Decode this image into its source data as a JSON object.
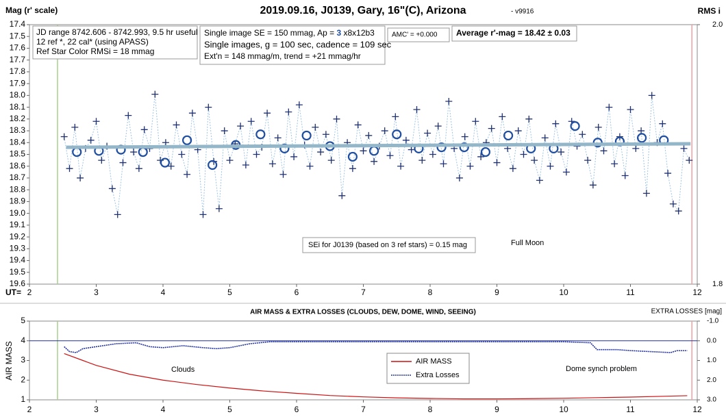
{
  "chart_data": [
    {
      "type": "scatter",
      "title": "2019.09.16, J0139, Gary, 16\"(C), Arizona",
      "version": "- v9916",
      "y_label": "Mag (r' scale)",
      "y2_label": "RMS i",
      "x_prefix": "UT=",
      "xlim": [
        2,
        12
      ],
      "xticks": [
        2,
        3,
        4,
        5,
        6,
        7,
        8,
        9,
        10,
        11,
        12
      ],
      "ylim": [
        19.6,
        17.4
      ],
      "yticks": [
        17.4,
        17.5,
        17.6,
        17.7,
        17.8,
        17.9,
        {
          "value": 18,
          "label": "18.0"
        },
        18.1,
        18.2,
        18.3,
        18.4,
        18.5,
        18.6,
        18.7,
        18.8,
        18.9,
        {
          "value": 19,
          "label": "19.0"
        },
        19.1,
        19.2,
        19.3,
        19.4,
        19.5,
        19.6
      ],
      "y2lim": [
        1.8,
        2.0
      ],
      "y2ticks": [
        {
          "value": 2,
          "label": "2.0"
        },
        {
          "value": 1.8,
          "label": "1.8"
        }
      ],
      "markers": [
        {
          "x": 2.42,
          "color": "#a8d08d"
        },
        {
          "x": 11.92,
          "color": "#f2a0a0"
        }
      ],
      "info": {
        "box1": [
          "JD range 8742.606 - 8742.993, 9.5 hr useful",
          "12 ref *, 22 cal* (using APASS)",
          "Ref Star Color RMSi = 18 mmag"
        ],
        "box2_line1": [
          "Single image SE = 150 mmag, Ap = ",
          "3",
          " x8x12b3"
        ],
        "box2": [
          "Single images, g = 100 sec, cadence = 109 sec",
          "Ext'n = 148 mmag/m, trend = +21 mmag/hr"
        ],
        "amc": "AMC' = +0.000",
        "average": "Average r'-mag =  18.42 ± 0.03",
        "sei": "SEi for J0139 (based on 3 ref stars) = 0.15 mag",
        "moon": "Full Moon"
      },
      "series": [
        {
          "marker": "plus",
          "color": "#1f3070",
          "line_color": "#9cc3e6",
          "x": [
            2.52,
            2.6,
            2.68,
            2.76,
            2.84,
            2.92,
            3,
            3.08,
            3.16,
            3.24,
            3.32,
            3.4,
            3.48,
            3.56,
            3.64,
            3.72,
            3.8,
            3.88,
            3.96,
            4.04,
            4.12,
            4.2,
            4.28,
            4.36,
            4.44,
            4.52,
            4.6,
            4.68,
            4.76,
            4.84,
            4.92,
            5,
            5.08,
            5.16,
            5.24,
            5.32,
            5.4,
            5.48,
            5.56,
            5.64,
            5.72,
            5.8,
            5.88,
            5.96,
            6.04,
            6.12,
            6.2,
            6.28,
            6.36,
            6.44,
            6.52,
            6.6,
            6.68,
            6.76,
            6.84,
            6.92,
            7,
            7.08,
            7.16,
            7.24,
            7.32,
            7.4,
            7.48,
            7.56,
            7.64,
            7.72,
            7.8,
            7.88,
            7.96,
            8.04,
            8.12,
            8.2,
            8.28,
            8.36,
            8.44,
            8.52,
            8.6,
            8.68,
            8.76,
            8.84,
            8.92,
            9,
            9.08,
            9.16,
            9.24,
            9.32,
            9.4,
            9.48,
            9.56,
            9.64,
            9.72,
            9.8,
            9.88,
            9.96,
            10.04,
            10.12,
            10.2,
            10.28,
            10.36,
            10.44,
            10.52,
            10.6,
            10.68,
            10.76,
            10.84,
            10.92,
            11,
            11.08,
            11.16,
            11.24,
            11.32,
            11.4,
            11.48,
            11.56,
            11.64,
            11.72,
            11.8,
            11.88
          ],
          "values": [
            18.35,
            18.62,
            18.27,
            18.7,
            18.45,
            18.38,
            18.22,
            18.55,
            18.43,
            18.79,
            19.01,
            18.57,
            18.17,
            18.48,
            18.62,
            18.29,
            18.45,
            17.99,
            18.55,
            18.4,
            18.6,
            18.25,
            18.5,
            18.67,
            18.15,
            18.46,
            19.01,
            18.1,
            18.56,
            18.96,
            18.3,
            18.55,
            18.41,
            18.26,
            18.59,
            18.22,
            18.5,
            18.44,
            18.15,
            18.58,
            18.36,
            18.67,
            18.14,
            18.52,
            18.08,
            18.42,
            18.6,
            18.27,
            18.48,
            18.33,
            18.55,
            18.2,
            18.85,
            18.4,
            18.62,
            18.25,
            18.47,
            18.34,
            18.56,
            18.43,
            18.3,
            18.51,
            18.18,
            18.6,
            18.38,
            18.46,
            18.12,
            18.55,
            18.32,
            18.5,
            18.26,
            18.58,
            18.05,
            18.45,
            18.7,
            18.35,
            18.6,
            18.22,
            18.52,
            18.4,
            18.28,
            18.57,
            18.18,
            18.45,
            18.62,
            18.3,
            18.5,
            18.2,
            18.55,
            18.72,
            18.36,
            18.6,
            18.24,
            18.48,
            18.65,
            18.22,
            18.43,
            18.33,
            18.55,
            18.76,
            18.27,
            18.47,
            18.1,
            18.58,
            18.35,
            18.68,
            18.12,
            18.45,
            18.3,
            18.83,
            18.0,
            18.4,
            18.24,
            18.66,
            18.92,
            18.98,
            18.45,
            18.55
          ]
        },
        {
          "marker": "circle",
          "color": "#1f4ea0",
          "x": [
            2.71,
            3.04,
            3.37,
            3.7,
            4.03,
            4.36,
            4.74,
            5.09,
            5.46,
            5.82,
            6.15,
            6.5,
            6.84,
            7.16,
            7.5,
            7.83,
            8.17,
            8.51,
            8.83,
            9.17,
            9.51,
            9.85,
            10.17,
            10.51,
            10.84,
            11.17,
            11.5
          ],
          "values": [
            18.48,
            18.47,
            18.46,
            18.48,
            18.57,
            18.38,
            18.59,
            18.42,
            18.33,
            18.45,
            18.34,
            18.43,
            18.52,
            18.47,
            18.33,
            18.45,
            18.44,
            18.44,
            18.48,
            18.34,
            18.45,
            18.45,
            18.26,
            18.4,
            18.39,
            18.36,
            18.38
          ]
        },
        {
          "marker": "line",
          "color": "#93b6c9",
          "x": [
            2.55,
            11.9
          ],
          "values": [
            18.44,
            18.41
          ]
        }
      ]
    },
    {
      "type": "line",
      "title": "AIR MASS & EXTRA LOSSES (CLOUDS, DEW, DOME, WIND, SEEING)",
      "y_label": "AIR MASS",
      "y2_label": "EXTRA LOSSES [mag]",
      "xlim": [
        2,
        12
      ],
      "xticks": [
        2,
        3,
        4,
        5,
        6,
        7,
        8,
        9,
        10,
        11,
        12
      ],
      "ylim": [
        1,
        5
      ],
      "yticks": [
        1,
        2,
        3,
        4,
        5
      ],
      "y2lim": [
        3,
        -1
      ],
      "y2ticks": [
        {
          "value": -1,
          "label": "-1.0"
        },
        {
          "value": 0,
          "label": "0.0"
        },
        {
          "value": 1,
          "label": "1.0"
        },
        {
          "value": 2,
          "label": "2.0"
        },
        {
          "value": 3,
          "label": "3.0"
        }
      ],
      "y2_zero_line": true,
      "markers": [
        {
          "x": 2.42,
          "color": "#a8d08d"
        },
        {
          "x": 11.92,
          "color": "#f2a0a0"
        }
      ],
      "annotations": [
        "Clouds",
        "Dome synch problem"
      ],
      "legend": "center",
      "series": [
        {
          "name": "AIR MASS",
          "color": "#cc1111",
          "style": "solid",
          "x": [
            2.52,
            2.8,
            3,
            3.5,
            4,
            4.5,
            5,
            5.5,
            6,
            6.5,
            7,
            7.5,
            8,
            8.5,
            9,
            9.5,
            10,
            10.5,
            11,
            11.5,
            11.85
          ],
          "values": [
            3.35,
            3,
            2.75,
            2.3,
            2,
            1.78,
            1.6,
            1.45,
            1.33,
            1.22,
            1.15,
            1.1,
            1.07,
            1.05,
            1.05,
            1.06,
            1.08,
            1.11,
            1.14,
            1.18,
            1.21
          ]
        },
        {
          "name": "Extra Losses",
          "color": "#1f2f9c",
          "style": "dotted",
          "axis": "y2",
          "x": [
            2.52,
            2.6,
            2.7,
            2.8,
            3,
            3.3,
            3.6,
            3.8,
            4,
            4.3,
            4.6,
            4.8,
            5,
            5.3,
            5.6,
            6,
            6.5,
            7,
            7.5,
            8,
            8.5,
            9,
            9.5,
            10,
            10.4,
            10.5,
            10.8,
            11,
            11.3,
            11.6,
            11.7,
            11.85
          ],
          "values": [
            0.3,
            0.55,
            0.6,
            0.4,
            0.3,
            0.15,
            0.1,
            0.3,
            0.35,
            0.25,
            0.35,
            0.4,
            0.35,
            0.15,
            0.05,
            0.05,
            0.05,
            0.05,
            0.05,
            0.05,
            0.05,
            0.05,
            0.05,
            0.05,
            0.1,
            0.45,
            0.45,
            0.5,
            0.55,
            0.6,
            0.5,
            0.5
          ]
        }
      ]
    }
  ]
}
